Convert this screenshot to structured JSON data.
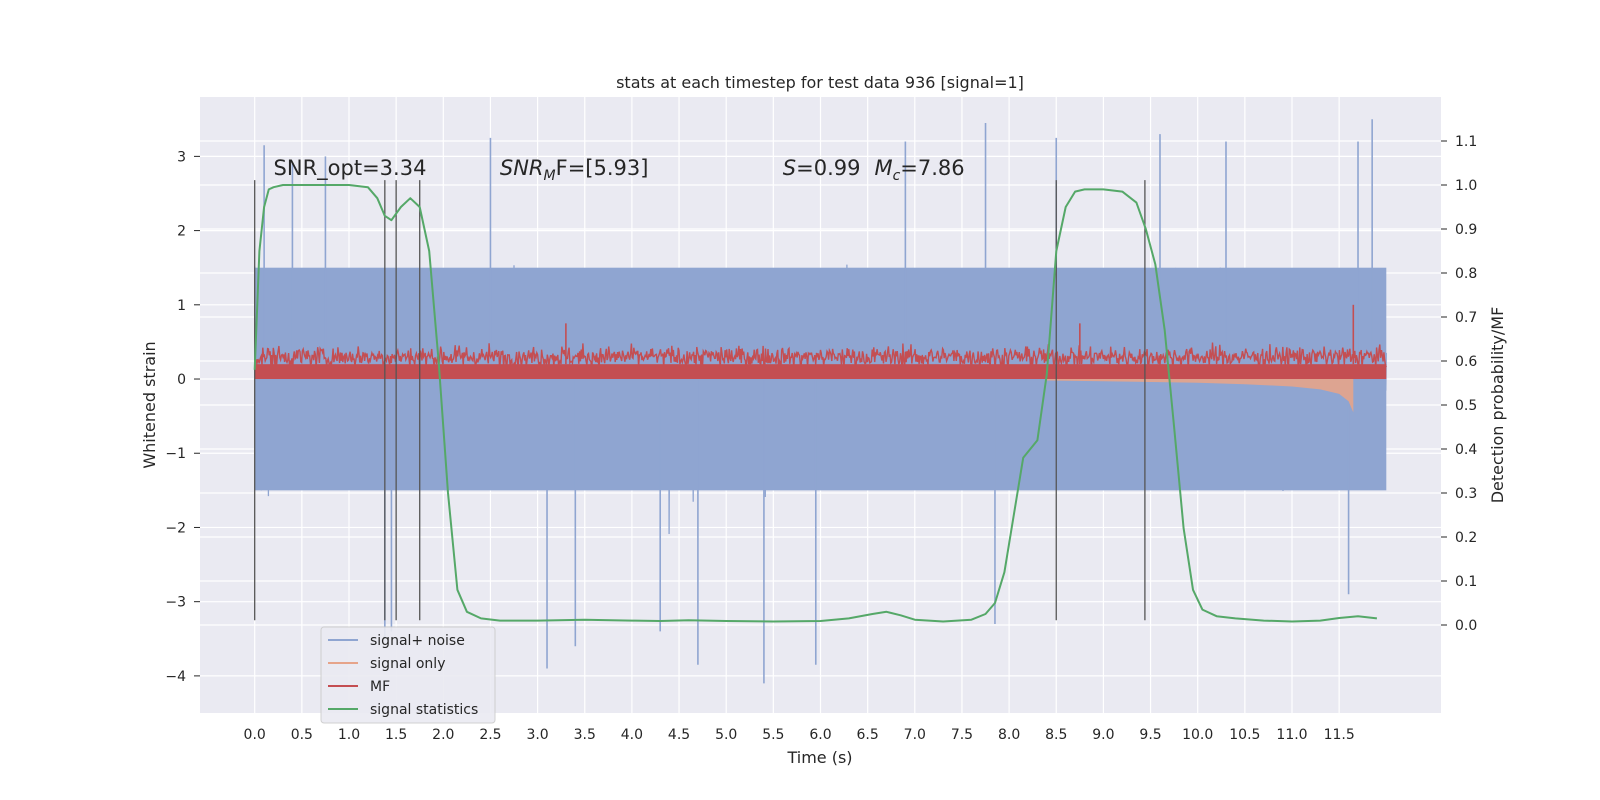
{
  "chart_data": {
    "type": "line",
    "title": "stats at each timestep for test data 936 [signal=1]",
    "xlabel": "Time (s)",
    "ylabel_left": "Whitened strain",
    "ylabel_right": "Detection probability/MF",
    "xlim": [
      -0.58,
      12.58
    ],
    "ylim_left": [
      -4.5,
      3.8
    ],
    "ylim_right": [
      -0.2,
      1.2
    ],
    "x_ticks": [
      0.0,
      0.5,
      1.0,
      1.5,
      2.0,
      2.5,
      3.0,
      3.5,
      4.0,
      4.5,
      5.0,
      5.5,
      6.0,
      6.5,
      7.0,
      7.5,
      8.0,
      8.5,
      9.0,
      9.5,
      10.0,
      10.5,
      11.0,
      11.5
    ],
    "y_left_ticks": [
      -4,
      -3,
      -2,
      -1,
      0,
      1,
      2,
      3
    ],
    "y_right_ticks": [
      0.0,
      0.1,
      0.2,
      0.3,
      0.4,
      0.5,
      0.6,
      0.7,
      0.8,
      0.9,
      1.0,
      1.1
    ],
    "grid": true,
    "legend_position": "lower-left",
    "annotations": [
      {
        "id": "snr_opt",
        "text": "SNR_opt=3.34",
        "x": 0.2,
        "y": 2.75
      },
      {
        "id": "snr_mf",
        "text_main": "SNR",
        "text_sub": "M",
        "text_rest": "F=[5.93]",
        "x": 2.6,
        "y": 2.75
      },
      {
        "id": "stats",
        "text_s": "S",
        "text_s_val": "=0.99",
        "text_m": "M",
        "text_m_sub": "c",
        "text_m_val": "=7.86",
        "x": 5.6,
        "y": 2.75
      }
    ],
    "vertical_lines_x": [
      0.0,
      1.38,
      1.5,
      1.75,
      8.5,
      9.44
    ],
    "vertical_lines_ylim": [
      -3.25,
      2.68
    ],
    "series": [
      {
        "name": "signal+ noise",
        "color": "#8fa5d1",
        "axis": "left",
        "description_free": true,
        "x_range": [
          0.0,
          12.0
        ],
        "envelope_abs": 1.6,
        "peaks": [
          {
            "x": 0.1,
            "y": 3.15
          },
          {
            "x": 0.4,
            "y": 2.9
          },
          {
            "x": 0.75,
            "y": 3.0
          },
          {
            "x": 1.38,
            "y": -3.5
          },
          {
            "x": 1.45,
            "y": -3.4
          },
          {
            "x": 2.5,
            "y": 3.25
          },
          {
            "x": 3.1,
            "y": -3.9
          },
          {
            "x": 3.4,
            "y": -3.6
          },
          {
            "x": 4.3,
            "y": -3.4
          },
          {
            "x": 4.7,
            "y": -3.85
          },
          {
            "x": 5.4,
            "y": -4.1
          },
          {
            "x": 5.95,
            "y": -3.85
          },
          {
            "x": 6.9,
            "y": 3.2
          },
          {
            "x": 7.75,
            "y": 3.45
          },
          {
            "x": 7.85,
            "y": -3.3
          },
          {
            "x": 8.5,
            "y": 3.25
          },
          {
            "x": 9.6,
            "y": 3.3
          },
          {
            "x": 10.3,
            "y": 3.2
          },
          {
            "x": 11.6,
            "y": -2.9
          },
          {
            "x": 11.85,
            "y": 3.5
          },
          {
            "x": 11.7,
            "y": 3.2
          }
        ]
      },
      {
        "name": "signal only",
        "color": "#e6a48a",
        "axis": "left",
        "x": [
          8.4,
          9.0,
          9.5,
          10.0,
          10.5,
          11.0,
          11.3,
          11.5,
          11.6,
          11.65
        ],
        "amplitude": [
          0.02,
          0.03,
          0.04,
          0.05,
          0.07,
          0.1,
          0.14,
          0.2,
          0.3,
          0.45
        ]
      },
      {
        "name": "MF",
        "color": "#c44e52",
        "axis": "left",
        "x_range": [
          0.0,
          12.0
        ],
        "baseline": 0.0,
        "top_mean": 0.3,
        "top_amp": 0.12,
        "spikes": [
          {
            "x": 3.3,
            "y": 0.75
          },
          {
            "x": 11.65,
            "y": 1.0
          },
          {
            "x": 8.75,
            "y": 0.75
          }
        ]
      },
      {
        "name": "signal statistics",
        "color": "#55a868",
        "axis": "right",
        "x": [
          0.0,
          0.05,
          0.1,
          0.15,
          0.2,
          0.3,
          0.5,
          0.8,
          1.0,
          1.2,
          1.3,
          1.38,
          1.45,
          1.55,
          1.65,
          1.75,
          1.85,
          1.95,
          2.05,
          2.15,
          2.25,
          2.4,
          2.6,
          3.0,
          3.5,
          4.0,
          4.3,
          4.6,
          4.8,
          5.0,
          5.5,
          6.0,
          6.3,
          6.55,
          6.7,
          6.85,
          7.0,
          7.3,
          7.6,
          7.75,
          7.85,
          7.95,
          8.05,
          8.15,
          8.3,
          8.4,
          8.5,
          8.6,
          8.7,
          8.8,
          9.0,
          9.2,
          9.35,
          9.45,
          9.55,
          9.65,
          9.75,
          9.85,
          9.95,
          10.05,
          10.2,
          10.4,
          10.7,
          11.0,
          11.3,
          11.5,
          11.7,
          11.9
        ],
        "values": [
          0.58,
          0.85,
          0.95,
          0.99,
          0.995,
          1.0,
          1.0,
          1.0,
          1.0,
          0.995,
          0.97,
          0.93,
          0.92,
          0.95,
          0.97,
          0.95,
          0.85,
          0.6,
          0.3,
          0.08,
          0.03,
          0.015,
          0.01,
          0.01,
          0.012,
          0.01,
          0.009,
          0.011,
          0.01,
          0.009,
          0.008,
          0.009,
          0.015,
          0.025,
          0.03,
          0.022,
          0.012,
          0.008,
          0.012,
          0.025,
          0.05,
          0.12,
          0.25,
          0.38,
          0.42,
          0.57,
          0.85,
          0.95,
          0.985,
          0.99,
          0.99,
          0.985,
          0.96,
          0.9,
          0.82,
          0.67,
          0.45,
          0.22,
          0.08,
          0.035,
          0.02,
          0.015,
          0.01,
          0.008,
          0.01,
          0.016,
          0.02,
          0.015
        ]
      }
    ]
  }
}
